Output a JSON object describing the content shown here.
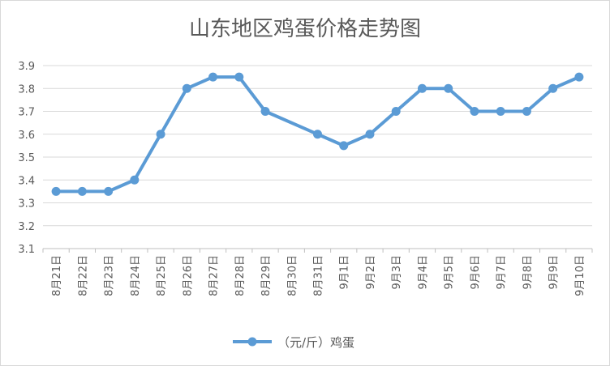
{
  "chart_data": {
    "type": "line",
    "title": "山东地区鸡蛋价格走势图",
    "xlabel": "",
    "ylabel": "",
    "categories": [
      "8月21日",
      "8月22日",
      "8月23日",
      "8月24日",
      "8月25日",
      "8月26日",
      "8月27日",
      "8月28日",
      "8月29日",
      "8月30日",
      "8月31日",
      "9月1日",
      "9月2日",
      "9月3日",
      "9月4日",
      "9月5日",
      "9月6日",
      "9月7日",
      "9月8日",
      "9月9日",
      "9月10日"
    ],
    "series": [
      {
        "name": "（元/斤）鸡蛋",
        "values": [
          3.35,
          3.35,
          3.35,
          3.4,
          3.6,
          3.8,
          3.85,
          3.85,
          3.7,
          null,
          3.6,
          3.55,
          3.6,
          3.7,
          3.8,
          3.8,
          3.7,
          3.7,
          3.7,
          3.8,
          3.85
        ]
      }
    ],
    "ylim": [
      3.1,
      3.9
    ],
    "yticks": [
      "3.1",
      "3.2",
      "3.3",
      "3.4",
      "3.5",
      "3.6",
      "3.7",
      "3.8",
      "3.9"
    ],
    "grid": true,
    "legend_position": "bottom",
    "color": "#5b9bd5"
  }
}
